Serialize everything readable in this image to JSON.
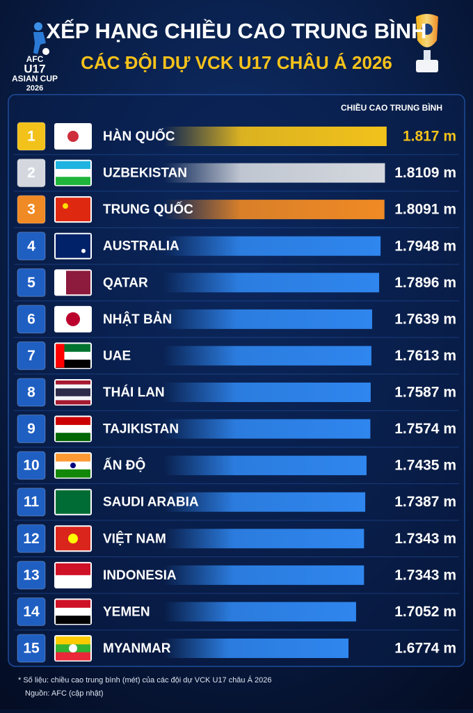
{
  "chart_data": {
    "type": "bar",
    "orientation": "horizontal",
    "title": "XẾP HẠNG CHIỀU CAO TRUNG BÌNH",
    "subtitle": "CÁC ĐỘI DỰ VCK U17 CHÂU Á 2026",
    "logo_text": [
      "AFC",
      "U17",
      "ASIAN CUP",
      "2026"
    ],
    "value_header": "CHIỀU CAO TRUNG BÌNH",
    "ranks": [
      1,
      2,
      3,
      4,
      5,
      6,
      7,
      8,
      9,
      10,
      11,
      12,
      13,
      14,
      15
    ],
    "categories": [
      "HÀN QUỐC",
      "UZBEKISTAN",
      "TRUNG QUỐC",
      "AUSTRALIA",
      "QATAR",
      "NHẬT BẢN",
      "UAE",
      "THÁI LAN",
      "TAJIKISTAN",
      "ẤN ĐỘ",
      "SAUDI ARABIA",
      "VIỆT NAM",
      "INDONESIA",
      "YEMEN",
      "MYANMAR"
    ],
    "values": [
      1.817,
      1.8109,
      1.8091,
      1.7948,
      1.7896,
      1.7639,
      1.7613,
      1.7587,
      1.7574,
      1.7435,
      1.7387,
      1.7343,
      1.7343,
      1.7052,
      1.6774
    ],
    "value_labels": [
      "1.817 m",
      "1.8109 m",
      "1.8091 m",
      "1.7948 m",
      "1.7896 m",
      "1.7639 m",
      "1.7613 m",
      "1.7587 m",
      "1.7574 m",
      "1.7435 m",
      "1.7387 m",
      "1.7343 m",
      "1.7343 m",
      "1.7052 m",
      "1.6774 m"
    ],
    "colors": [
      "#f2c21b",
      "#d4d8de",
      "#f08a24",
      "#2f86ee",
      "#2f86ee",
      "#2f86ee",
      "#2f86ee",
      "#2f86ee",
      "#2f86ee",
      "#2f86ee",
      "#2f86ee",
      "#2f86ee",
      "#2f86ee",
      "#2f86ee",
      "#2f86ee"
    ],
    "xlim": [
      1.0,
      1.82
    ],
    "footnote": "* Số liệu: chiều cao trung bình (mét) của các đội dự VCK U17 châu Á 2026",
    "source": "Nguồn: AFC (cập nhật)"
  }
}
